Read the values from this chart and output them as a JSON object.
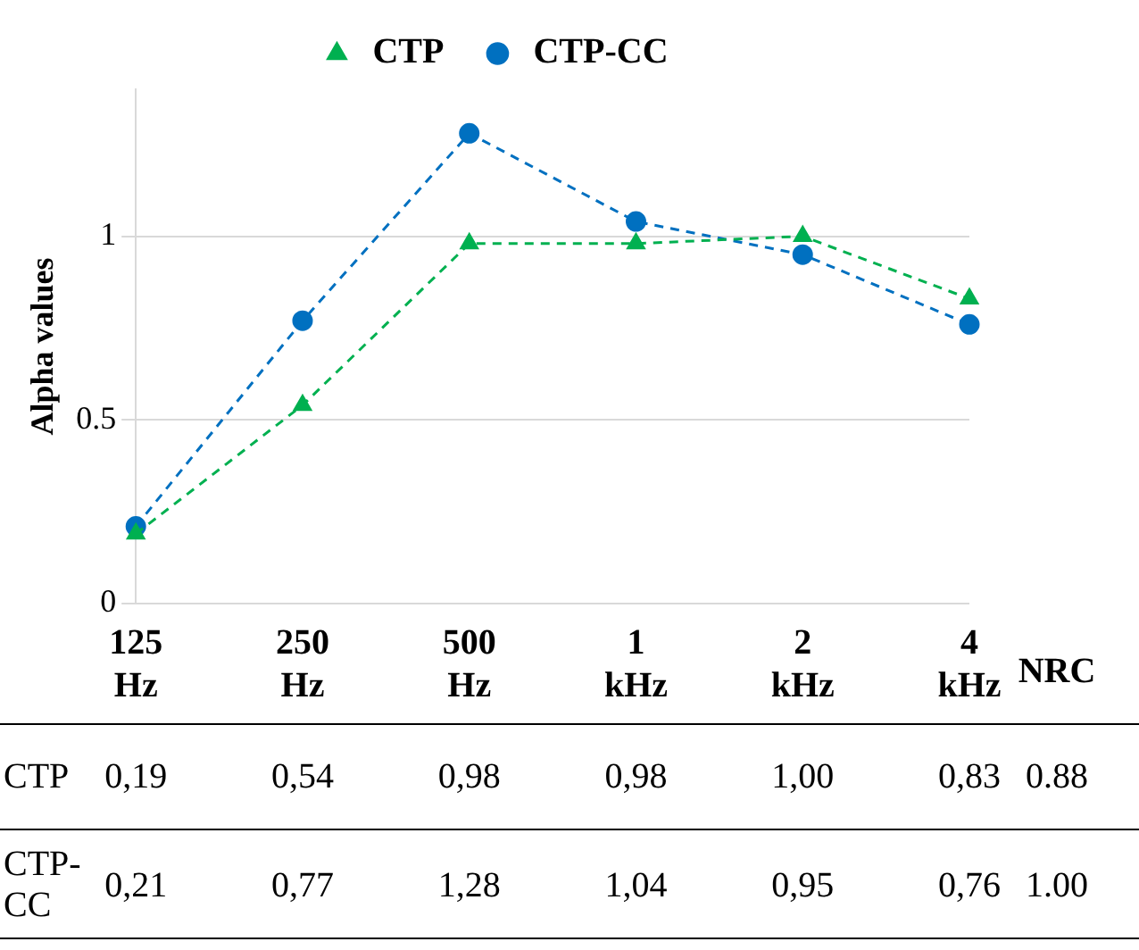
{
  "chart_data": {
    "type": "line",
    "ylabel": "Alpha values",
    "categories": [
      "125 Hz",
      "250 Hz",
      "500 Hz",
      "1 kHz",
      "2 kHz",
      "4 kHz"
    ],
    "series": [
      {
        "name": "CTP",
        "color": "#00b050",
        "marker": "triangle",
        "values": [
          0.19,
          0.54,
          0.98,
          0.98,
          1.0,
          0.83
        ],
        "value_labels": [
          "0,19",
          "0,54",
          "0,98",
          "0,98",
          "1,00",
          "0,83"
        ]
      },
      {
        "name": "CTP-CC",
        "color": "#0070c0",
        "marker": "circle",
        "values": [
          0.21,
          0.77,
          1.28,
          1.04,
          0.95,
          0.76
        ],
        "value_labels": [
          "0,21",
          "0,77",
          "1,28",
          "1,04",
          "0,95",
          "0,76"
        ]
      }
    ],
    "ylim": [
      0,
      1.4
    ],
    "yticks": [
      0,
      0.5,
      1
    ],
    "grid": "y",
    "legend": "top",
    "line_style": "dashed",
    "annotations": [
      "NRC",
      "0.88",
      "1.00"
    ]
  }
}
